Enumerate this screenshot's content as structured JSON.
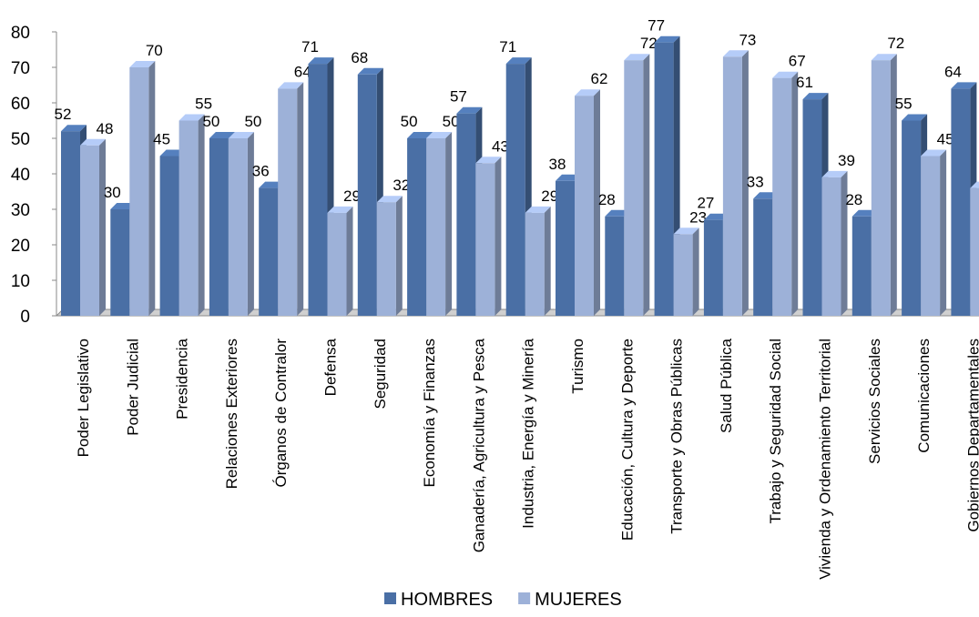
{
  "chart_data": {
    "type": "bar",
    "title": "",
    "xlabel": "",
    "ylabel": "",
    "ylim": [
      0,
      80
    ],
    "yticks": [
      0,
      10,
      20,
      30,
      40,
      50,
      60,
      70,
      80
    ],
    "grid": false,
    "legend_position": "bottom",
    "categories": [
      "Poder Legislativo",
      "Poder Judicial",
      "Presidencia",
      "Relaciones Exteriores",
      "Órganos de Contralor",
      "Defensa",
      "Seguridad",
      "Economía y Finanzas",
      "Ganadería, Agricultura y Pesca",
      "Industria, Energía y Minería",
      "Turismo",
      "Educación, Cultura y Deporte",
      "Transporte y Obras Públicas",
      "Salud Pública",
      "Trabajo y Seguridad Social",
      "Vivienda y Ordenamiento Territorial",
      "Servicios Sociales",
      "Comunicaciones",
      "Gobiernos Departamentales"
    ],
    "series": [
      {
        "name": "HOMBRES",
        "color": "#4A6FA5",
        "values": [
          52,
          30,
          45,
          50,
          36,
          71,
          68,
          50,
          57,
          71,
          38,
          28,
          77,
          27,
          33,
          61,
          28,
          55,
          64
        ]
      },
      {
        "name": "MUJERES",
        "color": "#9DB1D8",
        "values": [
          48,
          70,
          55,
          50,
          64,
          29,
          32,
          50,
          43,
          29,
          62,
          72,
          23,
          73,
          67,
          39,
          72,
          45,
          36
        ]
      }
    ]
  }
}
